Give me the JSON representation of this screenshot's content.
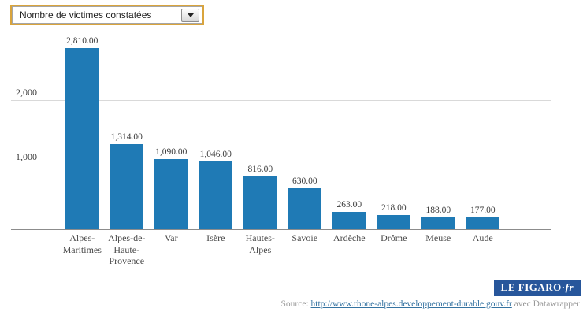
{
  "dropdown": {
    "selected": "Nombre de victimes constatées"
  },
  "chart_data": {
    "type": "bar",
    "title": "",
    "xlabel": "",
    "ylabel": "",
    "categories": [
      "Alpes-Maritimes",
      "Alpes-de-Haute-Provence",
      "Var",
      "Isère",
      "Hautes-Alpes",
      "Savoie",
      "Ardèche",
      "Drôme",
      "Meuse",
      "Aude"
    ],
    "values": [
      2810,
      1314,
      1090,
      1046,
      816,
      630,
      263,
      218,
      188,
      177
    ],
    "value_labels": [
      "2,810.00",
      "1,314.00",
      "1,090.00",
      "1,046.00",
      "816.00",
      "630.00",
      "263.00",
      "218.00",
      "188.00",
      "177.00"
    ],
    "y_ticks": [
      {
        "value": 1000,
        "label": "1,000"
      },
      {
        "value": 2000,
        "label": "2,000"
      }
    ],
    "ylim": [
      0,
      3000
    ],
    "grid": true,
    "legend": false,
    "bar_color": "#1f7ab5",
    "gridline_color": "#d9d9d9",
    "axis_color": "#8c8c8c"
  },
  "footer": {
    "logo_text": "LE FIGARO",
    "logo_separator": "·",
    "logo_suffix": "fr",
    "source_prefix": "Source:",
    "source_link_text": "http://www.rhone-alpes.developpement-durable.gouv.fr",
    "source_suffix": "avec Datawrapper"
  }
}
